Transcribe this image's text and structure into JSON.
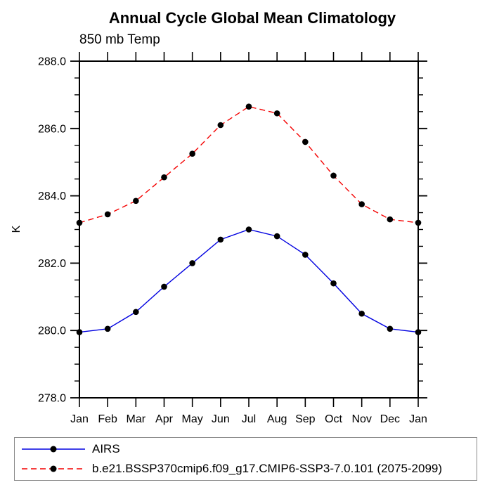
{
  "chart_data": {
    "type": "line",
    "title": "Annual Cycle Global Mean Climatology",
    "subtitle": "850 mb Temp",
    "ylabel": "K",
    "xlabel": "",
    "categories": [
      "Jan",
      "Feb",
      "Mar",
      "Apr",
      "May",
      "Jun",
      "Jul",
      "Aug",
      "Sep",
      "Oct",
      "Nov",
      "Dec",
      "Jan"
    ],
    "ylim": [
      278.0,
      288.0
    ],
    "y_major_step": 2.0,
    "y_minor_step": 0.5,
    "y_ticks": [
      {
        "value": 278.0,
        "label": "278.0"
      },
      {
        "value": 280.0,
        "label": "280.0"
      },
      {
        "value": 282.0,
        "label": "282.0"
      },
      {
        "value": 284.0,
        "label": "284.0"
      },
      {
        "value": 286.0,
        "label": "286.0"
      },
      {
        "value": 288.0,
        "label": "288.0"
      }
    ],
    "grid": false,
    "legend_position": "bottom-left-box",
    "marker": "filled-circle",
    "marker_color": "#000000",
    "series": [
      {
        "name": "AIRS",
        "color": "#0000e0",
        "style": "solid",
        "values": [
          279.95,
          280.05,
          280.55,
          281.3,
          282.0,
          282.7,
          283.0,
          282.8,
          282.25,
          281.4,
          280.5,
          280.05,
          279.95
        ]
      },
      {
        "name": "b.e21.BSSP370cmip6.f09_g17.CMIP6-SSP3-7.0.101 (2075-2099)",
        "color": "#f40000",
        "style": "dashed",
        "values": [
          283.2,
          283.45,
          283.85,
          284.55,
          285.25,
          286.1,
          286.65,
          286.45,
          285.6,
          284.6,
          283.75,
          283.3,
          283.2
        ]
      }
    ],
    "colors": {
      "axis": "#000000",
      "legend_border": "#8a8a8a",
      "background": "#ffffff"
    }
  }
}
